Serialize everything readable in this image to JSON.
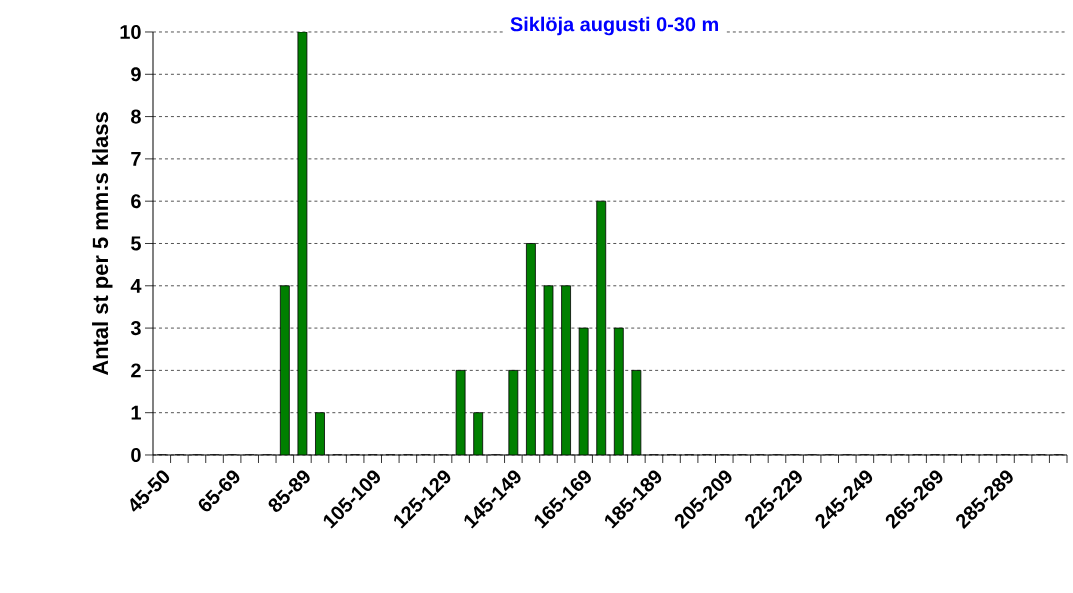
{
  "chart_data": {
    "type": "bar",
    "title": "Siklöja augusti 0-30 m",
    "ylabel": "Antal st per 5 mm:s klass",
    "categories": [
      "45-50",
      null,
      null,
      null,
      "65-69",
      null,
      null,
      null,
      "85-89",
      null,
      null,
      null,
      "105-109",
      null,
      null,
      null,
      "125-129",
      null,
      null,
      null,
      "145-149",
      null,
      null,
      null,
      "165-169",
      null,
      null,
      null,
      "185-189",
      null,
      null,
      null,
      "205-209",
      null,
      null,
      null,
      "225-229",
      null,
      null,
      null,
      "245-249",
      null,
      null,
      null,
      "265-269",
      null,
      null,
      null,
      "285-289",
      null,
      null,
      null
    ],
    "values": [
      0,
      0,
      0,
      0,
      0,
      0,
      0,
      4,
      10,
      1,
      0,
      0,
      0,
      0,
      0,
      0,
      0,
      2,
      1,
      0,
      2,
      5,
      4,
      4,
      3,
      6,
      3,
      2,
      0,
      0,
      0,
      0,
      0,
      0,
      0,
      0,
      0,
      0,
      0,
      0,
      0,
      0,
      0,
      0,
      0,
      0,
      0,
      0,
      0,
      0,
      0,
      0
    ],
    "color": "#008000",
    "ylim": [
      0,
      10
    ],
    "yticks": [
      0,
      1,
      2,
      3,
      4,
      5,
      6,
      7,
      8,
      9,
      10
    ],
    "grid": "y"
  }
}
